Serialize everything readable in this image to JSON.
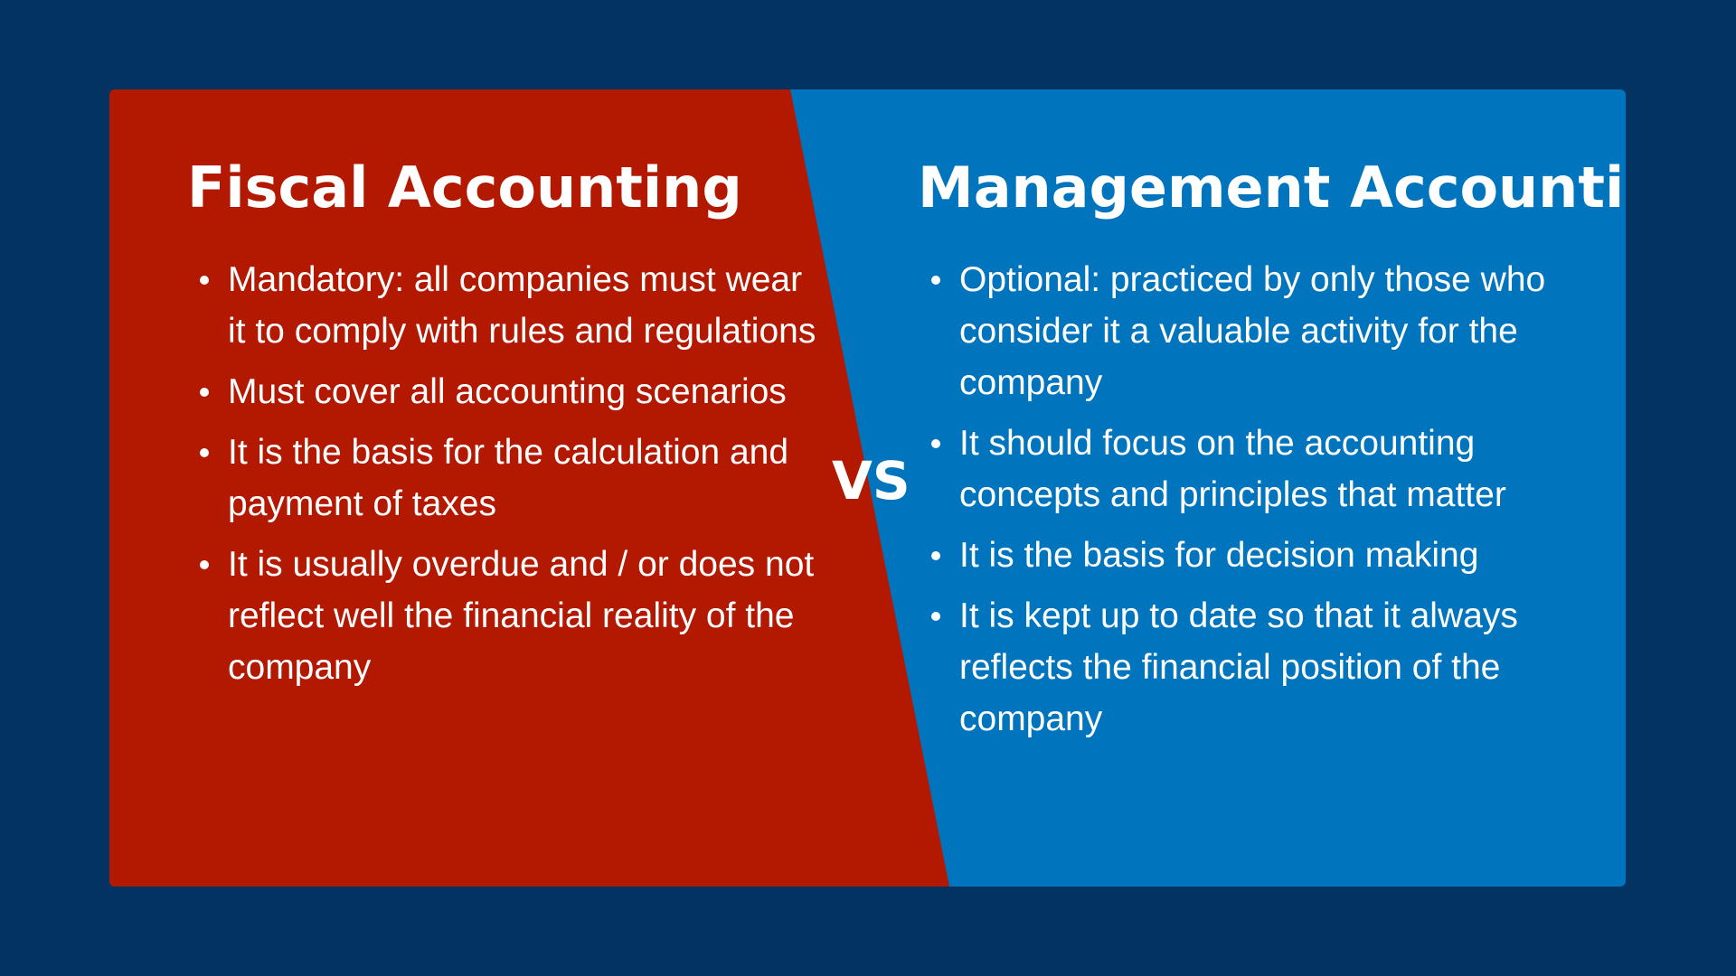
{
  "colors": {
    "page_background": "#033363",
    "left_panel": "#b31800",
    "right_panel": "#0074bc",
    "text": "#ffffff"
  },
  "left": {
    "title": "Fiscal Accounting",
    "points": [
      "Mandatory: all companies must wear it to comply with rules and regulations",
      "Must cover all accounting scenarios",
      "It is the basis for the calculation and payment of taxes",
      "It is usually overdue and / or does not reflect well the financial reality of the company"
    ]
  },
  "divider": {
    "label": "VS"
  },
  "right": {
    "title": "Management Accounting",
    "points": [
      "Optional: practiced by only those who consider it a valuable activity for the company",
      "It should focus on the accounting concepts and principles that matter",
      "It is the basis for decision making",
      "It is kept up to date so that it always reflects the financial position of the company"
    ]
  }
}
